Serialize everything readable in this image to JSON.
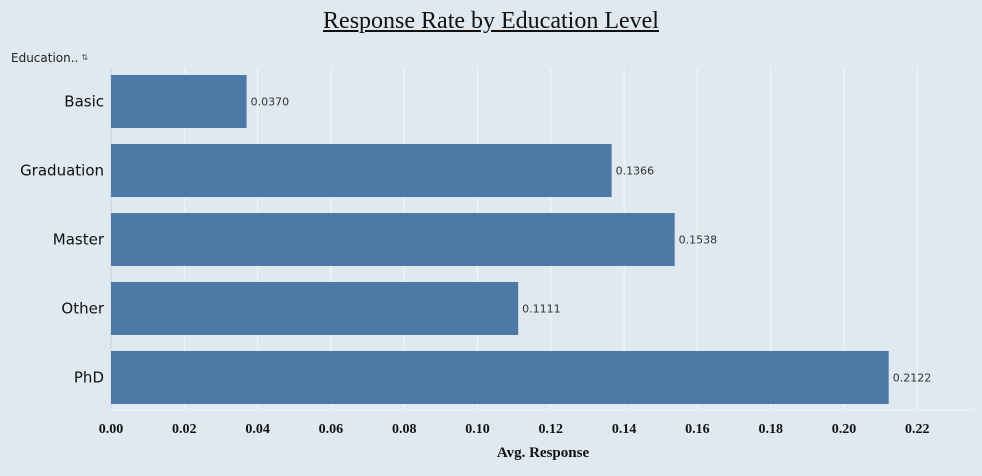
{
  "chart_data": {
    "type": "bar",
    "orientation": "horizontal",
    "title": "Response Rate by Education Level",
    "row_header": "Education..",
    "categories": [
      "Basic",
      "Graduation",
      "Master",
      "Other",
      "PhD"
    ],
    "values": [
      0.037,
      0.1366,
      0.1538,
      0.1111,
      0.2122
    ],
    "value_labels": [
      "0.0370",
      "0.1366",
      "0.1538",
      "0.1111",
      "0.2122"
    ],
    "xlabel": "Avg. Response",
    "xticks": [
      "0.00",
      "0.02",
      "0.04",
      "0.06",
      "0.08",
      "0.10",
      "0.12",
      "0.14",
      "0.16",
      "0.18",
      "0.20",
      "0.22"
    ],
    "xlim": [
      0,
      0.235
    ],
    "grid": true,
    "bar_color": "#4e79a7",
    "background": "#dfe9ef",
    "grid_color": "#f4f8fa"
  }
}
